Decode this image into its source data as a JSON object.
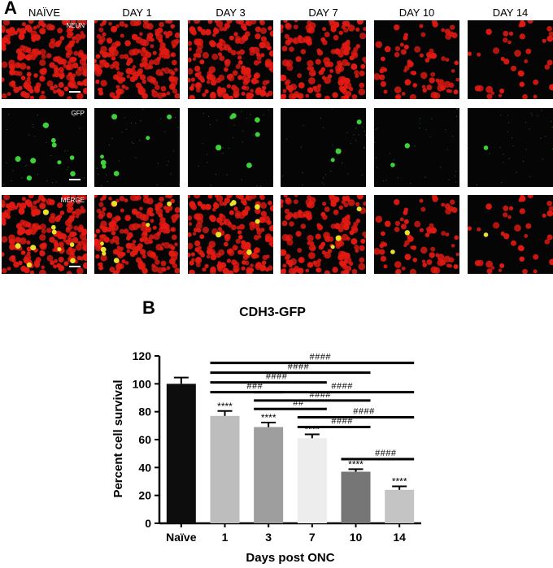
{
  "panel_a": {
    "letter": "A",
    "columns": [
      "NAÏVE",
      "DAY 1",
      "DAY 3",
      "DAY 7",
      "DAY 10",
      "DAY 14"
    ],
    "row_tags": [
      "NEUN",
      "GFP",
      "MERGE"
    ],
    "channel_colors": {
      "neun": "#e21a12",
      "gfp": "#3fd13a",
      "merge_overlap": "#e8e22a"
    }
  },
  "panel_b": {
    "letter": "B"
  },
  "chart_data": {
    "type": "bar",
    "title": "CDH3-GFP",
    "xlabel": "Days post ONC",
    "ylabel": "Percent cell survival",
    "categories": [
      "Naïve",
      "1",
      "3",
      "7",
      "10",
      "14"
    ],
    "values": [
      100,
      77,
      69,
      61,
      37,
      24
    ],
    "errors": [
      4.5,
      3.5,
      3.2,
      2.8,
      1.8,
      2.5
    ],
    "bar_colors": [
      "#0d0d0d",
      "#bdbdbd",
      "#9e9e9e",
      "#ededed",
      "#767676",
      "#c4c4c4"
    ],
    "ylim": [
      0,
      120
    ],
    "yticks": [
      "0",
      "20",
      "40",
      "60",
      "80",
      "100",
      "120"
    ],
    "significance_vs_naive": [
      "",
      "****",
      "****",
      "****",
      "****",
      "****"
    ],
    "comparisons": [
      {
        "from": "1",
        "to": "14",
        "label": "####"
      },
      {
        "from": "1",
        "to": "10",
        "label": "####"
      },
      {
        "from": "1",
        "to": "7",
        "label": "####"
      },
      {
        "from": "1",
        "to": "3",
        "label": "###"
      },
      {
        "from": "3",
        "to": "14",
        "label": "####"
      },
      {
        "from": "3",
        "to": "10",
        "label": "####"
      },
      {
        "from": "3",
        "to": "7",
        "label": "##"
      },
      {
        "from": "7",
        "to": "14",
        "label": "####"
      },
      {
        "from": "7",
        "to": "10",
        "label": "####"
      },
      {
        "from": "10",
        "to": "14",
        "label": "####"
      }
    ]
  }
}
